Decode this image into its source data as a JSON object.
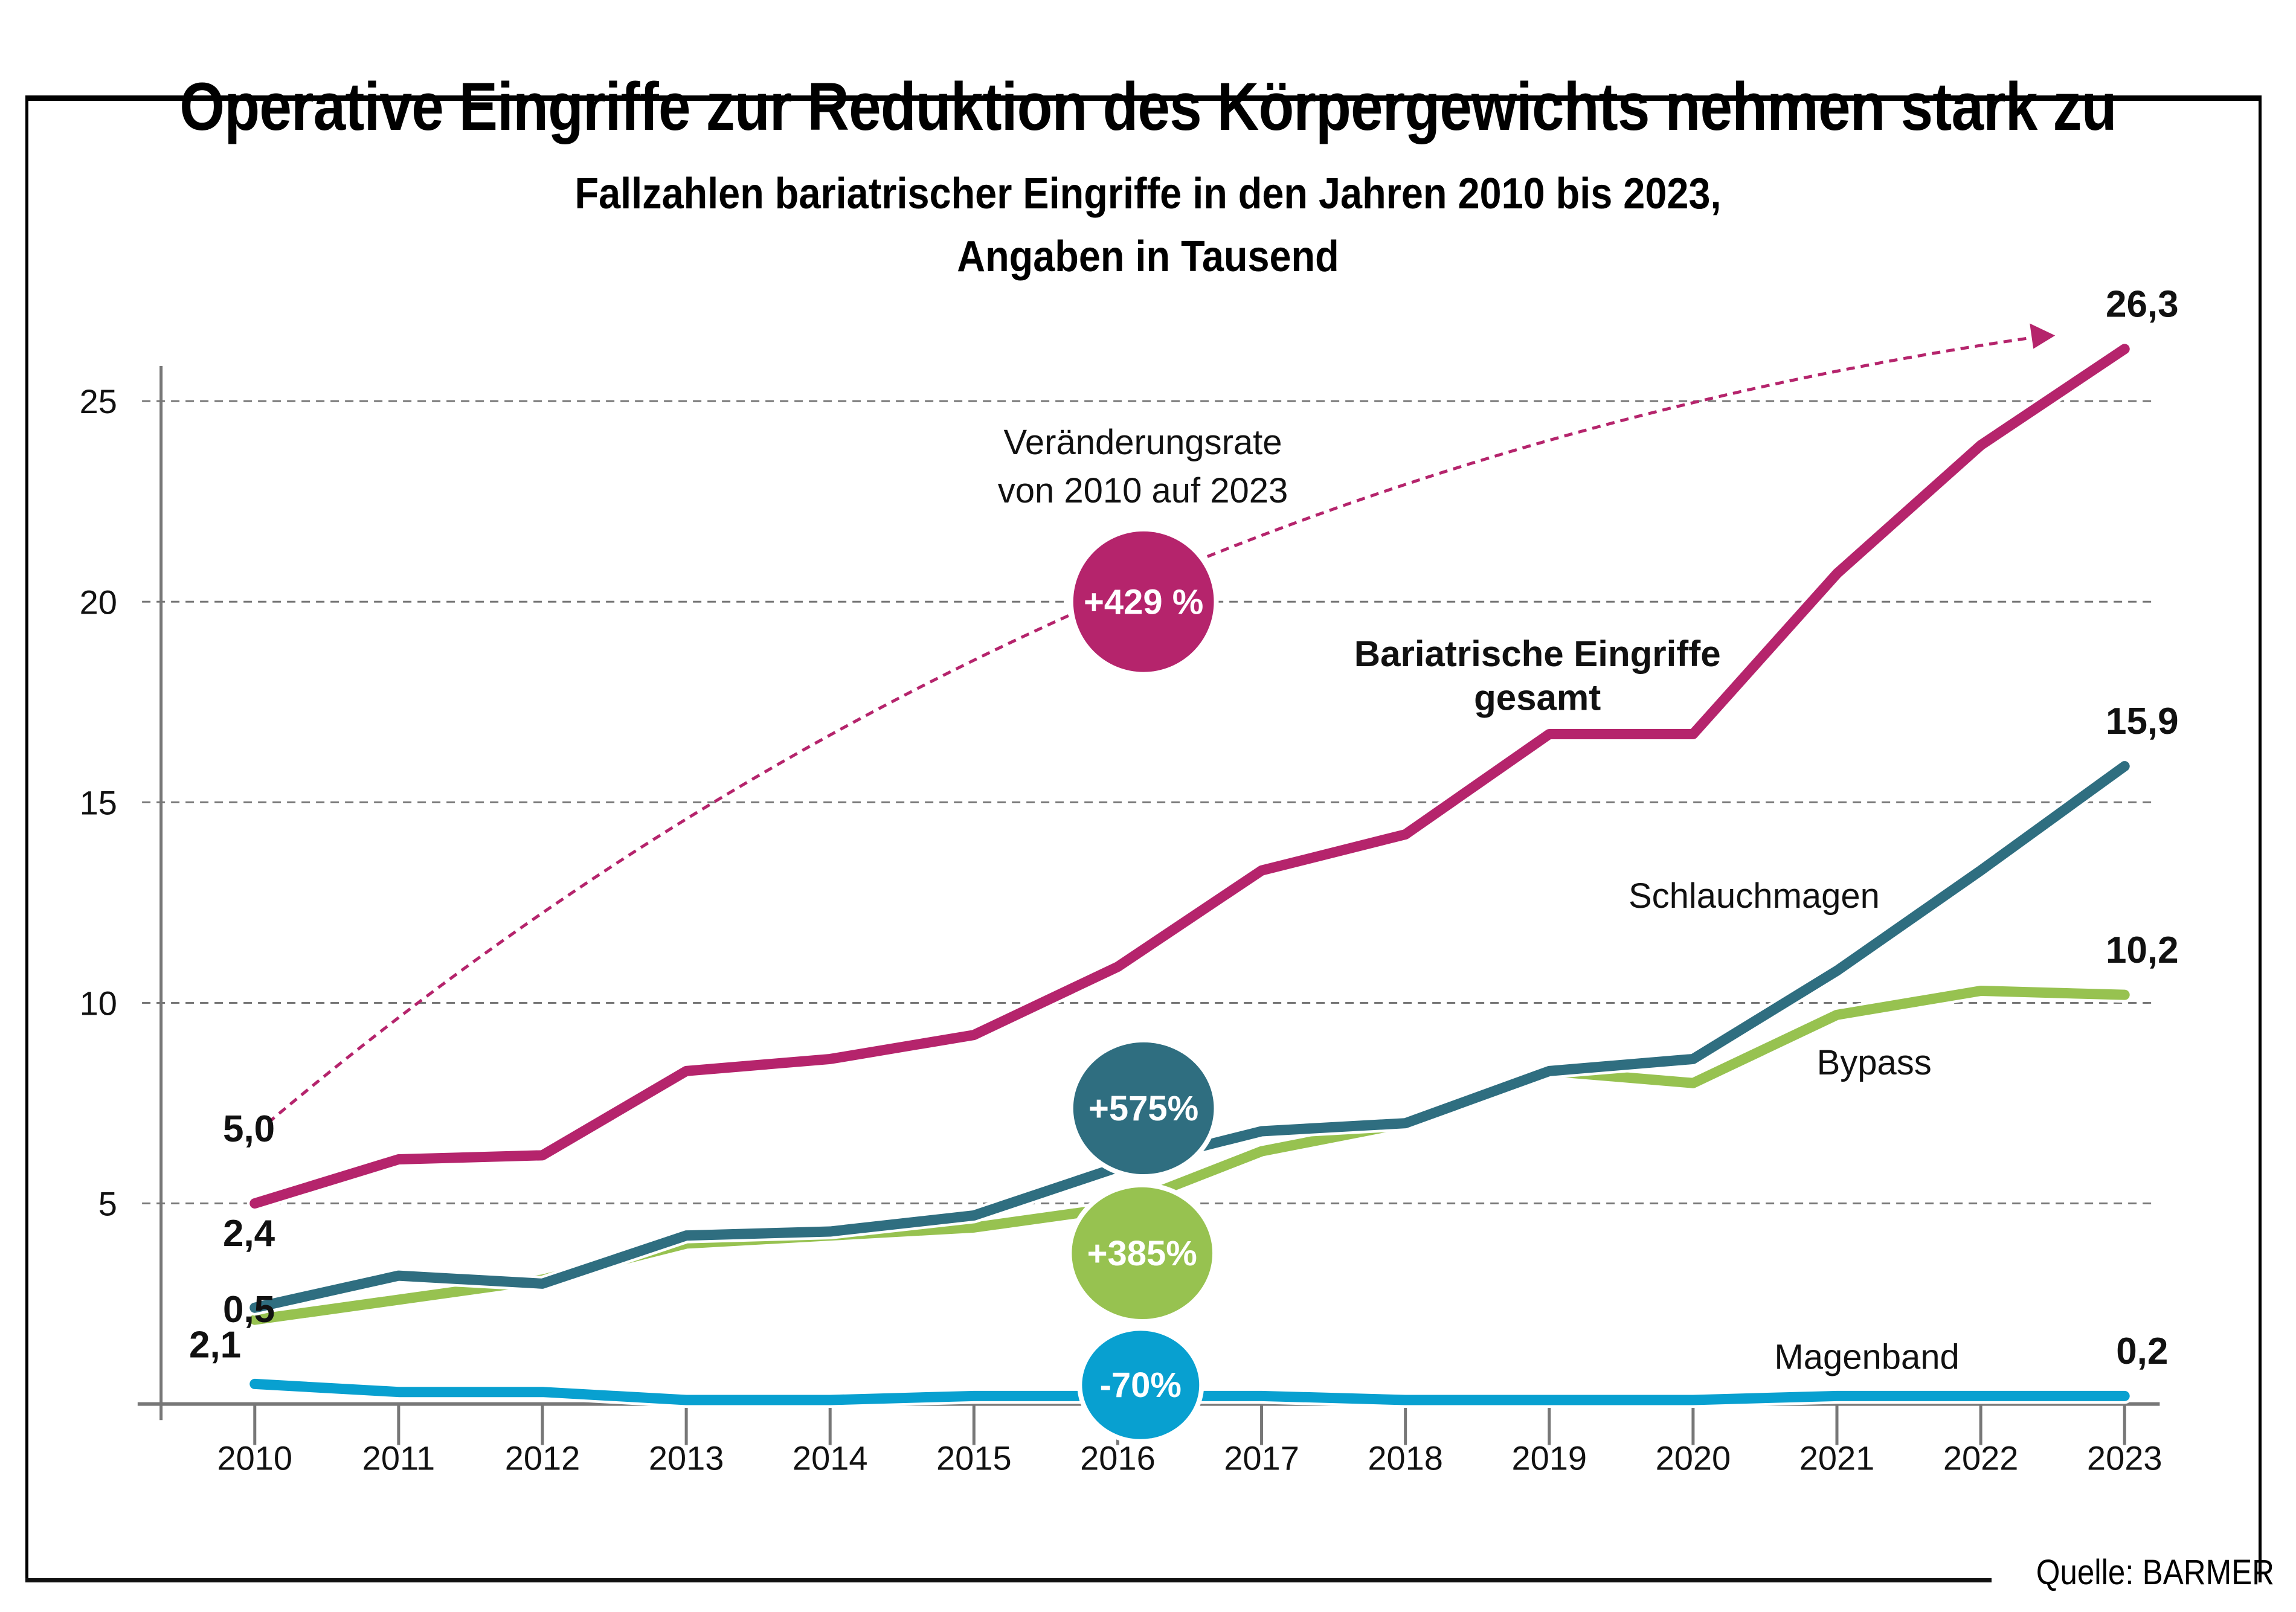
{
  "header": {
    "title": "Operative Eingriffe zur Reduktion des Körpergewichts nehmen stark zu",
    "subtitle_line1": "Fallzahlen bariatrischer Eingriffe in den Jahren 2010 bis 2023,",
    "subtitle_line2": "Angaben in Tausend"
  },
  "source": "Quelle: BARMER",
  "annotation": {
    "line1": "Veränderungsrate",
    "line2": "von 2010 auf 2023"
  },
  "chart_data": {
    "type": "line",
    "title": "Fallzahlen bariatrischer Eingriffe in den Jahren 2010 bis 2023, Angaben in Tausend",
    "xlabel": "",
    "ylabel": "",
    "ylim": [
      0,
      27
    ],
    "yticks": [
      5,
      10,
      15,
      20,
      25
    ],
    "grid": true,
    "categories": [
      "2010",
      "2011",
      "2012",
      "2013",
      "2014",
      "2015",
      "2016",
      "2017",
      "2018",
      "2019",
      "2020",
      "2021",
      "2022",
      "2023"
    ],
    "series": [
      {
        "name": "Bariatrische Eingriffe gesamt",
        "label_lines": [
          "Bariatrische Eingriffe",
          "gesamt"
        ],
        "color": "#b5246c",
        "values": [
          5.0,
          6.1,
          6.2,
          8.3,
          8.6,
          9.2,
          10.9,
          13.3,
          14.2,
          16.7,
          16.7,
          20.7,
          23.9,
          26.3
        ],
        "start_label": "5,0",
        "end_label": "26,3",
        "change": "+429 %"
      },
      {
        "name": "Schlauchmagen",
        "label_lines": [
          "Schlauchmagen"
        ],
        "color": "#2f6e80",
        "values": [
          2.4,
          3.2,
          3.0,
          4.2,
          4.3,
          4.7,
          5.9,
          6.8,
          7.0,
          8.3,
          8.6,
          10.8,
          13.3,
          15.9
        ],
        "start_label": "2,4",
        "end_label": "15,9",
        "change": "+575%"
      },
      {
        "name": "Bypass",
        "label_lines": [
          "Bypass"
        ],
        "color": "#97c250",
        "values": [
          2.1,
          2.6,
          3.1,
          4.0,
          4.2,
          4.4,
          4.9,
          6.3,
          7.0,
          8.3,
          8.0,
          9.7,
          10.3,
          10.2
        ],
        "start_label": "2,1",
        "end_label": "10,2",
        "change": "+385%"
      },
      {
        "name": "Magenband",
        "label_lines": [
          "Magenband"
        ],
        "color": "#08a0d0",
        "values": [
          0.5,
          0.3,
          0.3,
          0.1,
          0.1,
          0.2,
          0.2,
          0.2,
          0.1,
          0.1,
          0.1,
          0.2,
          0.2,
          0.2
        ],
        "start_label": "0,5",
        "end_label": "0,2",
        "change": "-70%"
      }
    ]
  }
}
